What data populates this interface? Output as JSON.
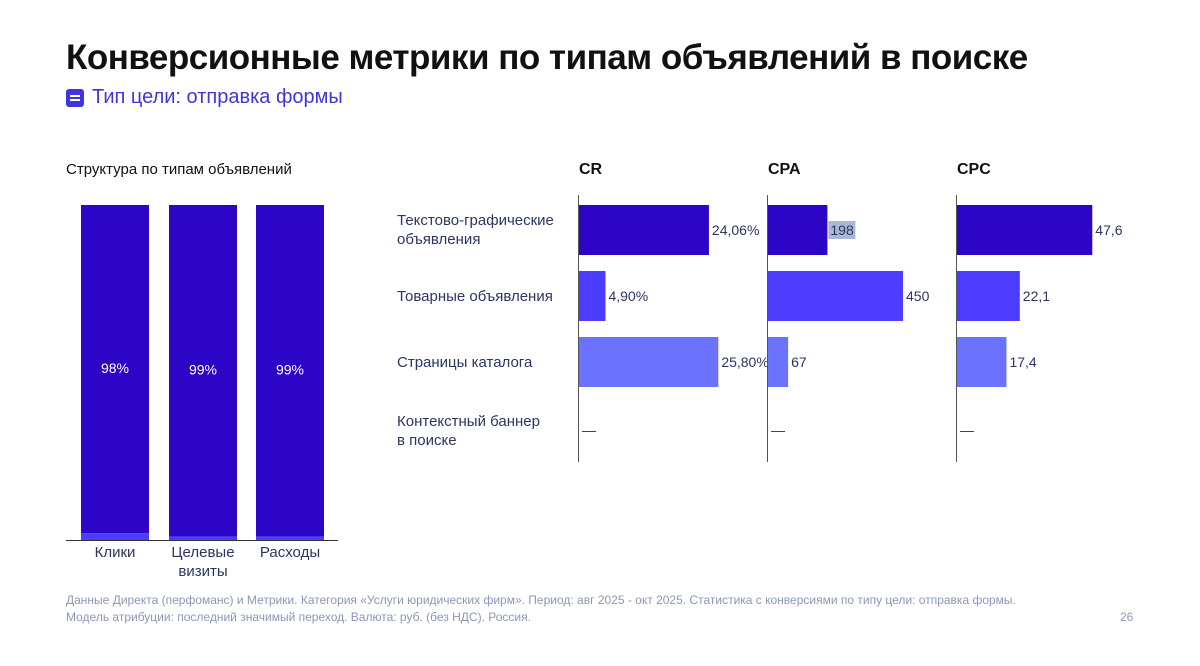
{
  "title": "Конверсионные метрики по типам объявлений в поиске",
  "subtitle": {
    "icon": "list-icon",
    "text": "Тип цели: отправка формы"
  },
  "colors": {
    "dark": "#2c05c6",
    "mid": "#4b3cff",
    "light": "#6a72ff",
    "accent": "#3f34e0"
  },
  "chart_data": [
    {
      "type": "bar",
      "stacked": true,
      "title": "Структура по типам объявлений",
      "categories": [
        "Клики",
        "Целевые визиты",
        "Расходы"
      ],
      "category_display": [
        [
          "Клики"
        ],
        [
          "Целевые",
          "визиты"
        ],
        [
          "Расходы"
        ]
      ],
      "series": [
        {
          "name": "Текстово-графические объявления",
          "values": [
            98,
            99,
            99
          ],
          "labels": [
            "98%",
            "99%",
            "99%"
          ]
        },
        {
          "name": "Товарные объявления",
          "values": [
            2,
            1,
            1
          ]
        }
      ],
      "ylim": [
        0,
        100
      ]
    },
    {
      "type": "bar",
      "orientation": "horizontal",
      "title": "CR",
      "categories": [
        "Текстово-графические объявления",
        "Товарные объявления",
        "Страницы каталога",
        "Контекстный баннер в поиске"
      ],
      "values": [
        24.06,
        4.9,
        25.8,
        null
      ],
      "labels": [
        "24,06%",
        "4,90%",
        "25,80%",
        "—"
      ],
      "xlim": [
        0,
        30
      ]
    },
    {
      "type": "bar",
      "orientation": "horizontal",
      "title": "CPA",
      "categories": [
        "Текстово-графические объявления",
        "Товарные объявления",
        "Страницы каталога",
        "Контекстный баннер в поиске"
      ],
      "values": [
        198,
        450,
        67,
        null
      ],
      "labels": [
        "198",
        "450",
        "67",
        "—"
      ],
      "xlim": [
        0,
        540
      ]
    },
    {
      "type": "bar",
      "orientation": "horizontal",
      "title": "CPC",
      "categories": [
        "Текстово-графические объявления",
        "Товарные объявления",
        "Страницы каталога",
        "Контекстный баннер в поиске"
      ],
      "values": [
        47.6,
        22.1,
        17.4,
        null
      ],
      "labels": [
        "47,6",
        "22,1",
        "17,4",
        "—"
      ],
      "xlim": [
        0,
        57
      ]
    }
  ],
  "row_labels": [
    [
      "Текстово-графические",
      "объявления"
    ],
    [
      "Товарные объявления"
    ],
    [
      "Страницы каталога"
    ],
    [
      "Контекстный баннер",
      "в поиске"
    ]
  ],
  "footer": "Данные Директа (перфоманс) и Метрики. Категория «Услуги юридических фирм». Период: авг 2025 - окт 2025. Статистика с конверсиями по типу цели: отправка формы. Модель атрибуции: последний значимый переход. Валюта: руб. (без НДС). Россия.",
  "page_number": "26"
}
